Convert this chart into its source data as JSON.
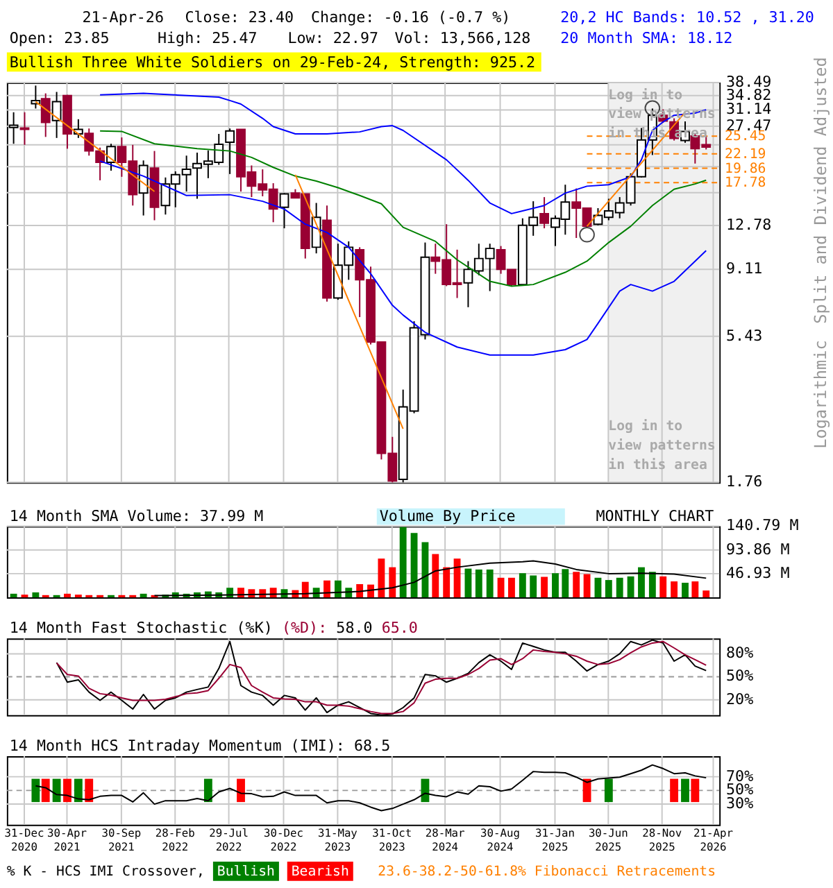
{
  "chart_data": [
    {
      "type": "candlestick",
      "title": "Bullish Three White Soldiers on 29-Feb-24, Strength: 925.2",
      "ylabel": "Split and Dividend Adjusted",
      "x": [
        "2020-12",
        "2021-01",
        "2021-02",
        "2021-03",
        "2021-04",
        "2021-05",
        "2021-06",
        "2021-07",
        "2021-08",
        "2021-09",
        "2021-10",
        "2021-11",
        "2021-12",
        "2022-01",
        "2022-02",
        "2022-03",
        "2022-04",
        "2022-05",
        "2022-06",
        "2022-07",
        "2022-08",
        "2022-09",
        "2022-10",
        "2022-11",
        "2022-12",
        "2023-01",
        "2023-02",
        "2023-03",
        "2023-04",
        "2023-05",
        "2023-06",
        "2023-07",
        "2023-08",
        "2023-09",
        "2023-10",
        "2023-11",
        "2023-12",
        "2024-01",
        "2024-02",
        "2024-03",
        "2024-04",
        "2024-05",
        "2024-06",
        "2024-07",
        "2024-08",
        "2024-09",
        "2024-10",
        "2024-11",
        "2024-12",
        "2025-01",
        "2025-02",
        "2025-03",
        "2025-04",
        "2025-05",
        "2025-06",
        "2025-07",
        "2025-08",
        "2025-09",
        "2025-10",
        "2025-11",
        "2025-12",
        "2026-01",
        "2026-02",
        "2026-03",
        "2026-04"
      ],
      "ohlc": [
        [
          27.2,
          30.6,
          24.0,
          27.7
        ],
        [
          27.1,
          30.6,
          23.8,
          26.8
        ],
        [
          32.7,
          37.6,
          31.5,
          33.5
        ],
        [
          34.0,
          35.4,
          25.3,
          28.3
        ],
        [
          28.7,
          35.8,
          25.1,
          33.2
        ],
        [
          34.8,
          35.0,
          23.1,
          25.9
        ],
        [
          25.9,
          29.0,
          25.1,
          26.8
        ],
        [
          26.0,
          27.0,
          21.9,
          22.7
        ],
        [
          22.7,
          23.3,
          18.1,
          20.8
        ],
        [
          20.8,
          24.0,
          19.5,
          23.5
        ],
        [
          23.5,
          25.2,
          18.6,
          20.8
        ],
        [
          21.0,
          23.8,
          14.9,
          16.2
        ],
        [
          16.4,
          21.1,
          13.8,
          20.3
        ],
        [
          19.9,
          22.7,
          13.3,
          14.7
        ],
        [
          14.9,
          18.5,
          13.9,
          17.6
        ],
        [
          17.6,
          19.4,
          14.7,
          18.9
        ],
        [
          18.9,
          21.9,
          16.6,
          19.7
        ],
        [
          19.9,
          22.4,
          15.7,
          20.6
        ],
        [
          20.5,
          22.8,
          18.4,
          21.0
        ],
        [
          20.8,
          25.9,
          20.4,
          23.9
        ],
        [
          24.3,
          27.0,
          19.0,
          26.5
        ],
        [
          26.8,
          26.8,
          16.6,
          18.6
        ],
        [
          19.3,
          20.3,
          15.9,
          17.3
        ],
        [
          17.6,
          19.7,
          16.0,
          16.8
        ],
        [
          16.9,
          17.7,
          13.1,
          14.5
        ],
        [
          14.7,
          16.4,
          12.5,
          16.3
        ],
        [
          16.4,
          16.9,
          15.8,
          15.8
        ],
        [
          16.3,
          16.3,
          9.9,
          10.7
        ],
        [
          10.8,
          15.2,
          10.3,
          13.6
        ],
        [
          13.3,
          14.9,
          7.1,
          7.3
        ],
        [
          7.3,
          11.1,
          7.2,
          9.4
        ],
        [
          9.4,
          11.3,
          8.4,
          10.8
        ],
        [
          10.6,
          10.8,
          6.3,
          8.4
        ],
        [
          8.4,
          9.3,
          5.1,
          5.2
        ],
        [
          5.2,
          5.2,
          2.1,
          2.2
        ],
        [
          2.2,
          2.5,
          1.76,
          1.78
        ],
        [
          1.8,
          3.6,
          1.76,
          3.15
        ],
        [
          3.05,
          6.1,
          3.0,
          5.8
        ],
        [
          5.5,
          11.2,
          5.3,
          10.0
        ],
        [
          10.0,
          11.1,
          8.8,
          9.7
        ],
        [
          9.8,
          12.9,
          8.0,
          8.1
        ],
        [
          8.2,
          10.6,
          7.3,
          8.1
        ],
        [
          8.2,
          9.7,
          6.8,
          9.1
        ],
        [
          9.0,
          11.1,
          8.7,
          9.9
        ],
        [
          9.9,
          11.1,
          7.7,
          10.7
        ],
        [
          10.6,
          10.9,
          8.8,
          9.1
        ],
        [
          9.1,
          9.1,
          8.0,
          8.1
        ],
        [
          8.1,
          13.5,
          8.1,
          12.8
        ],
        [
          12.8,
          15.4,
          11.8,
          13.6
        ],
        [
          14.0,
          15.9,
          12.5,
          13.0
        ],
        [
          12.6,
          13.8,
          10.9,
          13.5
        ],
        [
          13.4,
          17.5,
          11.9,
          15.3
        ],
        [
          15.3,
          17.0,
          11.6,
          14.6
        ],
        [
          14.6,
          14.6,
          12.6,
          12.7
        ],
        [
          12.9,
          14.6,
          12.8,
          13.8
        ],
        [
          13.6,
          15.7,
          13.3,
          14.3
        ],
        [
          14.1,
          15.9,
          13.5,
          15.2
        ],
        [
          15.2,
          19.1,
          14.9,
          18.6
        ],
        [
          18.6,
          27.1,
          18.5,
          24.7
        ],
        [
          24.7,
          31.5,
          22.0,
          29.9
        ],
        [
          29.9,
          31.3,
          28.2,
          28.6
        ],
        [
          28.4,
          29.2,
          24.6,
          25.0
        ],
        [
          24.6,
          28.5,
          24.2,
          26.4
        ],
        [
          25.5,
          25.9,
          20.6,
          23.1
        ],
        [
          23.85,
          25.47,
          22.97,
          23.4
        ]
      ],
      "series": [
        {
          "type": "line",
          "color": "#0000ff",
          "x": [
            "2021-08",
            "2021-12",
            "2022-07",
            "2022-08",
            "2022-09",
            "2022-11",
            "2022-12",
            "2023-02",
            "2023-05",
            "2023-08",
            "2023-10",
            "2023-11",
            "2023-12",
            "2024-04",
            "2024-06",
            "2024-08",
            "2024-10",
            "2024-11",
            "2025-01",
            "2025-03",
            "2025-05",
            "2025-07",
            "2025-09",
            "2025-10",
            "2025-11",
            "2025-12",
            "2026-01",
            "2026-03",
            "2026-04"
          ],
          "values": [
            35.0,
            35.4,
            34.4,
            33.5,
            32.6,
            29.2,
            27.4,
            25.9,
            25.9,
            26.3,
            27.4,
            27.6,
            26.6,
            21.2,
            18.1,
            15.2,
            14.0,
            14.3,
            14.9,
            16.4,
            17.3,
            17.5,
            18.6,
            21.2,
            26.6,
            28.4,
            29.9,
            30.4,
            31.2
          ]
        },
        {
          "type": "line",
          "color": "#008000",
          "x": [
            "2021-08",
            "2021-10",
            "2022-01",
            "2022-05",
            "2022-08",
            "2022-10",
            "2022-12",
            "2023-02",
            "2023-04",
            "2023-06",
            "2023-08",
            "2023-10",
            "2023-12",
            "2024-03",
            "2024-05",
            "2024-08",
            "2024-10",
            "2024-12",
            "2025-03",
            "2025-05",
            "2025-07",
            "2025-09",
            "2025-11",
            "2026-01",
            "2026-03",
            "2026-04"
          ],
          "values": [
            26.5,
            26.4,
            24.0,
            23.1,
            22.7,
            21.6,
            20.0,
            18.7,
            18.0,
            17.1,
            16.1,
            15.1,
            12.6,
            11.3,
            9.8,
            8.3,
            8.0,
            8.1,
            8.9,
            9.7,
            11.2,
            12.7,
            14.9,
            16.9,
            17.6,
            18.12
          ]
        },
        {
          "type": "line",
          "color": "#0000ff",
          "x": [
            "2021-08",
            "2021-12",
            "2022-04",
            "2022-08",
            "2022-11",
            "2023-01",
            "2023-03",
            "2023-05",
            "2023-07",
            "2023-09",
            "2023-11",
            "2023-12",
            "2024-02",
            "2024-05",
            "2024-08",
            "2024-12",
            "2025-03",
            "2025-05",
            "2025-06",
            "2025-08",
            "2025-09",
            "2025-11",
            "2026-01",
            "2026-04"
          ],
          "values": [
            21.0,
            18.7,
            16.1,
            16.2,
            15.4,
            14.5,
            12.9,
            12.1,
            10.8,
            8.8,
            6.9,
            6.4,
            5.6,
            5.0,
            4.7,
            4.7,
            4.9,
            5.3,
            6.0,
            7.7,
            8.1,
            7.7,
            8.3,
            10.52
          ]
        },
        {
          "type": "line",
          "color": "#ff8000",
          "x": [
            "2021-02",
            "2022-01"
          ],
          "values": [
            33.2,
            16.6
          ]
        },
        {
          "type": "line",
          "color": "#ff8000",
          "x": [
            "2023-02",
            "2023-12"
          ],
          "values": [
            18.9,
            2.66
          ]
        },
        {
          "type": "line",
          "color": "#ff8000",
          "x": [
            "2025-05",
            "2026-02"
          ],
          "values": [
            12.7,
            30.6
          ]
        },
        {
          "type": "scatter",
          "color": "#000000",
          "marker": "circle",
          "x": [
            "2025-05",
            "2025-11"
          ],
          "values": [
            11.9,
            31.6
          ]
        }
      ],
      "ref_lines": [
        {
          "axis": "y",
          "value": 25.45,
          "label": "25.45",
          "color": "#ff8000",
          "line_style": "dashed"
        },
        {
          "axis": "y",
          "value": 22.19,
          "label": "22.19",
          "color": "#ff8000",
          "line_style": "dashed"
        },
        {
          "axis": "y",
          "value": 19.86,
          "label": "19.86",
          "color": "#ff8000",
          "line_style": "dashed"
        },
        {
          "axis": "y",
          "value": 17.78,
          "label": "17.78",
          "color": "#ff8000",
          "line_style": "dashed"
        }
      ],
      "bands": [
        {
          "axis": "x",
          "from": "2025-06-30",
          "to": "2026-05-08",
          "color": "#f0f0f0"
        }
      ],
      "annotations": [
        "21-Apr-26",
        "Close: 23.40",
        "Change: -0.16 (-0.7 %)",
        "Open: 23.85",
        "High: 25.47",
        "Low: 22.97",
        "Vol: 13,566,128",
        "20,2 HC Bands: 10.52 , 31.20",
        "20 Month SMA: 18.12",
        "Log in to view patterns in this area",
        "Log in to view patterns in this area",
        "Logarithmic"
      ],
      "log": true,
      "ylim": [
        1.76,
        38.49
      ],
      "yticks": [
        1.76,
        5.43,
        9.11,
        12.78,
        {
          "value": 16.45,
          "label": null
        },
        {
          "value": 20.12,
          "label": null
        },
        {
          "value": 23.8,
          "label": null
        },
        27.47,
        31.14,
        34.82,
        38.49
      ],
      "xlim": [
        "2020-11-12",
        "2026-05-08"
      ],
      "xticks": [
        {
          "value": "2020-12-31",
          "label": null
        },
        {
          "value": "2021-04-30",
          "label": null
        },
        {
          "value": "2021-09-30",
          "label": null
        },
        {
          "value": "2022-02-28",
          "label": null
        },
        {
          "value": "2022-07-29",
          "label": null
        },
        {
          "value": "2022-12-30",
          "label": null
        },
        {
          "value": "2023-05-31",
          "label": null
        },
        {
          "value": "2023-10-31",
          "label": null
        },
        {
          "value": "2024-03-28",
          "label": null
        },
        {
          "value": "2024-08-30",
          "label": null
        },
        {
          "value": "2025-01-31",
          "label": null
        },
        {
          "value": "2025-06-30",
          "label": null
        },
        {
          "value": "2025-11-28",
          "label": null
        },
        {
          "value": "2026-04-21",
          "label": null
        }
      ],
      "grid": true,
      "tick_labels": "y"
    },
    {
      "type": "bar",
      "title": "14 Month SMA Volume: 37.99 M",
      "annotations": [
        "Volume By Price",
        "MONTHLY CHART"
      ],
      "series": [
        {
          "type": "bar",
          "x": [
            "2020-12",
            "2021-01",
            "2021-02",
            "2021-03",
            "2021-04",
            "2021-05",
            "2021-06",
            "2021-07",
            "2021-08",
            "2021-09",
            "2021-10",
            "2021-11",
            "2021-12",
            "2022-01",
            "2022-02",
            "2022-03",
            "2022-04",
            "2022-05",
            "2022-06",
            "2022-07",
            "2022-08",
            "2022-09",
            "2022-10",
            "2022-11",
            "2022-12",
            "2023-01",
            "2023-02",
            "2023-03",
            "2023-04",
            "2023-05",
            "2023-06",
            "2023-07",
            "2023-08",
            "2023-09",
            "2023-10",
            "2023-11",
            "2023-12",
            "2024-01",
            "2024-02",
            "2024-03",
            "2024-04",
            "2024-05",
            "2024-06",
            "2024-07",
            "2024-08",
            "2024-09",
            "2024-10",
            "2024-11",
            "2024-12",
            "2025-01",
            "2025-02",
            "2025-03",
            "2025-04",
            "2025-05",
            "2025-06",
            "2025-07",
            "2025-08",
            "2025-09",
            "2025-10",
            "2025-11",
            "2025-12",
            "2026-01",
            "2026-02",
            "2026-03",
            "2026-04"
          ],
          "values": [
            7.2,
            5.4,
            9.9,
            4.5,
            4.5,
            7.2,
            5.4,
            4.5,
            4.5,
            4.5,
            4.5,
            4.5,
            7.2,
            4.5,
            5.4,
            9.9,
            7.2,
            9.9,
            11.7,
            9.9,
            19.0,
            19.0,
            16.2,
            16.2,
            19.0,
            16.2,
            14.4,
            30.7,
            19.0,
            33.4,
            33.4,
            19.0,
            26.2,
            25.3,
            76.7,
            59.6,
            139,
            127.3,
            109.2,
            85.7,
            59.6,
            76.7,
            56.9,
            55.1,
            55.1,
            38.8,
            38.8,
            47.8,
            43.3,
            40.6,
            47.8,
            56.0,
            50.5,
            46.0,
            38.8,
            34.3,
            38.8,
            41.5,
            59.6,
            50.5,
            41.5,
            31.6,
            28.9,
            31.6,
            13.57
          ],
          "colors": [
            "#008000",
            "#ff0000",
            "#008000",
            "#ff0000",
            "#008000",
            "#ff0000",
            "#ff0000",
            "#ff0000",
            "#ff0000",
            "#008000",
            "#ff0000",
            "#ff0000",
            "#008000",
            "#ff0000",
            "#008000",
            "#008000",
            "#008000",
            "#008000",
            "#008000",
            "#008000",
            "#008000",
            "#ff0000",
            "#ff0000",
            "#ff0000",
            "#ff0000",
            "#008000",
            "#ff0000",
            "#ff0000",
            "#008000",
            "#ff0000",
            "#008000",
            "#008000",
            "#ff0000",
            "#ff0000",
            "#ff0000",
            "#ff0000",
            "#008000",
            "#008000",
            "#008000",
            "#ff0000",
            "#ff0000",
            "#ff0000",
            "#008000",
            "#008000",
            "#008000",
            "#ff0000",
            "#ff0000",
            "#008000",
            "#008000",
            "#ff0000",
            "#008000",
            "#008000",
            "#ff0000",
            "#ff0000",
            "#008000",
            "#008000",
            "#008000",
            "#008000",
            "#008000",
            "#008000",
            "#ff0000",
            "#ff0000",
            "#008000",
            "#ff0000",
            "#ff0000"
          ]
        },
        {
          "type": "line",
          "color": "#000000",
          "x": [
            "2022-01",
            "2022-07",
            "2023-03",
            "2023-08",
            "2023-11",
            "2024-01",
            "2024-03",
            "2024-05",
            "2024-08",
            "2024-11",
            "2024-12",
            "2025-02",
            "2025-04",
            "2025-07",
            "2025-10",
            "2026-01",
            "2026-04"
          ],
          "values": [
            3.6,
            4.5,
            7.2,
            11.7,
            19.0,
            29.8,
            52.3,
            59.6,
            67.7,
            70.4,
            72.2,
            65.9,
            55.1,
            46.9,
            47.8,
            46.0,
            37.99
          ]
        }
      ],
      "ylim": [
        0,
        140.79
      ],
      "yticks": [
        {
          "value": 46.93,
          "label": "46.93 M"
        },
        {
          "value": 93.86,
          "label": "93.86 M"
        },
        {
          "value": 140.79,
          "label": "140.79 M"
        }
      ],
      "xlim": [
        "2020-11-12",
        "2026-05-08"
      ],
      "xticks": [
        {
          "value": "2020-12-31",
          "label": null
        },
        {
          "value": "2021-04-30",
          "label": null
        },
        {
          "value": "2021-09-30",
          "label": null
        },
        {
          "value": "2022-02-28",
          "label": null
        },
        {
          "value": "2022-07-29",
          "label": null
        },
        {
          "value": "2022-12-30",
          "label": null
        },
        {
          "value": "2023-05-31",
          "label": null
        },
        {
          "value": "2023-10-31",
          "label": null
        },
        {
          "value": "2024-03-28",
          "label": null
        },
        {
          "value": "2024-08-30",
          "label": null
        },
        {
          "value": "2025-01-31",
          "label": null
        },
        {
          "value": "2025-06-30",
          "label": null
        },
        {
          "value": "2025-11-28",
          "label": null
        },
        {
          "value": "2026-04-21",
          "label": null
        }
      ],
      "grid": true,
      "tick_labels": "y"
    },
    {
      "type": "line",
      "title": "14 Month Fast Stochastic",
      "annotations": [
        "58.0",
        "65.0"
      ],
      "series": [
        {
          "name": "(%K)",
          "color": "#000000",
          "x": [
            "2021-04",
            "2021-05",
            "2021-06",
            "2021-07",
            "2021-08",
            "2021-09",
            "2021-10",
            "2021-11",
            "2021-12",
            "2022-01",
            "2022-02",
            "2022-03",
            "2022-04",
            "2022-05",
            "2022-06",
            "2022-07",
            "2022-08",
            "2022-09",
            "2022-10",
            "2022-11",
            "2022-12",
            "2023-01",
            "2023-02",
            "2023-03",
            "2023-04",
            "2023-05",
            "2023-06",
            "2023-07",
            "2023-08",
            "2023-09",
            "2023-10",
            "2023-11",
            "2023-12",
            "2024-01",
            "2024-02",
            "2024-03",
            "2024-04",
            "2024-05",
            "2024-06",
            "2024-07",
            "2024-08",
            "2024-09",
            "2024-10",
            "2024-11",
            "2024-12",
            "2025-01",
            "2025-02",
            "2025-03",
            "2025-04",
            "2025-05",
            "2025-06",
            "2025-07",
            "2025-08",
            "2025-09",
            "2025-10",
            "2025-11",
            "2025-12",
            "2026-01",
            "2026-02",
            "2026-03",
            "2026-04"
          ],
          "values": [
            68.5,
            43,
            46,
            30,
            19.3,
            30,
            19.3,
            7.9,
            27,
            7.9,
            19.3,
            22.5,
            30,
            33.4,
            36.6,
            60.8,
            96,
            38.5,
            30,
            25.7,
            13,
            25.7,
            22.5,
            6.6,
            22.5,
            3.4,
            13,
            17.4,
            9.8,
            2.1,
            0,
            1.5,
            9.8,
            22.5,
            53,
            51.3,
            43,
            48,
            54.5,
            68.5,
            78.7,
            70.4,
            59.6,
            94,
            89.6,
            85,
            82,
            82,
            70.4,
            57.6,
            66,
            70.4,
            80,
            96,
            91.5,
            97.9,
            94,
            70.4,
            78.7,
            64,
            58.0
          ]
        },
        {
          "name": "(%D):",
          "color": "#990033",
          "x": [
            "2021-04",
            "2021-05",
            "2021-06",
            "2021-07",
            "2021-08",
            "2021-09",
            "2021-10",
            "2021-11",
            "2021-12",
            "2022-01",
            "2022-02",
            "2022-03",
            "2022-04",
            "2022-05",
            "2022-06",
            "2022-07",
            "2022-08",
            "2022-09",
            "2022-10",
            "2022-11",
            "2022-12",
            "2023-01",
            "2023-02",
            "2023-03",
            "2023-04",
            "2023-05",
            "2023-06",
            "2023-07",
            "2023-08",
            "2023-09",
            "2023-10",
            "2023-11",
            "2023-12",
            "2024-01",
            "2024-02",
            "2024-03",
            "2024-04",
            "2024-05",
            "2024-06",
            "2024-07",
            "2024-08",
            "2024-09",
            "2024-10",
            "2024-11",
            "2024-12",
            "2025-01",
            "2025-02",
            "2025-03",
            "2025-04",
            "2025-05",
            "2025-06",
            "2025-07",
            "2025-08",
            "2025-09",
            "2025-10",
            "2025-11",
            "2025-12",
            "2026-01",
            "2026-02",
            "2026-03",
            "2026-04"
          ],
          "values": [
            68,
            53,
            51,
            35,
            28,
            26,
            22.5,
            19.3,
            19.3,
            19.3,
            20.6,
            24,
            28,
            29,
            32,
            48,
            66,
            62,
            38.5,
            30,
            22.5,
            21,
            20.6,
            17.4,
            17.4,
            13,
            13,
            11.7,
            8.5,
            4.7,
            2.1,
            2.1,
            4.7,
            16,
            41.7,
            46.8,
            48,
            48,
            53,
            60.8,
            71.7,
            73.6,
            66,
            73.6,
            85,
            83,
            82,
            80,
            76.8,
            70.4,
            66,
            67.2,
            72.3,
            81.3,
            89,
            94,
            96,
            87.6,
            78.7,
            72.3,
            65.0
          ]
        }
      ],
      "ylim": [
        0,
        100
      ],
      "yticks": [
        {
          "value": 20,
          "label": "20%"
        },
        {
          "value": 50,
          "label": "50%"
        },
        {
          "value": 80,
          "label": "80%"
        }
      ],
      "ref_lines": [
        {
          "axis": "y",
          "value": 50,
          "color": "#999999",
          "line_style": "dashed"
        }
      ],
      "xlim": [
        "2020-11-12",
        "2026-05-08"
      ],
      "xticks": [
        {
          "value": "2020-12-31",
          "label": null
        },
        {
          "value": "2021-04-30",
          "label": null
        },
        {
          "value": "2021-09-30",
          "label": null
        },
        {
          "value": "2022-02-28",
          "label": null
        },
        {
          "value": "2022-07-29",
          "label": null
        },
        {
          "value": "2022-12-30",
          "label": null
        },
        {
          "value": "2023-05-31",
          "label": null
        },
        {
          "value": "2023-10-31",
          "label": null
        },
        {
          "value": "2024-03-28",
          "label": null
        },
        {
          "value": "2024-08-30",
          "label": null
        },
        {
          "value": "2025-01-31",
          "label": null
        },
        {
          "value": "2025-06-30",
          "label": null
        },
        {
          "value": "2025-11-28",
          "label": null
        },
        {
          "value": "2026-04-21",
          "label": null
        }
      ],
      "grid": true,
      "tick_labels": "y"
    },
    {
      "type": "line",
      "title": "14 Month HCS Intraday Momentum (IMI): 68.5",
      "legend": "bottom",
      "legend_title": "% K - HCS IMI Crossover,",
      "annotations": [
        "23.6-38.2-50-61.8% Fibonacci Retracements"
      ],
      "series": [
        {
          "type": "bar",
          "name": "Bullish",
          "color": "#008000",
          "x": [
            "2021-02",
            "2021-04",
            "2021-06",
            "2022-06",
            "2024-02",
            "2025-07",
            "2026-02"
          ],
          "base": [
            33,
            33,
            33,
            33,
            33,
            33,
            33
          ],
          "values": [
            34,
            34,
            34,
            34,
            34,
            34,
            34
          ]
        },
        {
          "type": "bar",
          "name": "Bearish",
          "color": "#ff0000",
          "x": [
            "2021-03",
            "2021-05",
            "2021-07",
            "2022-09",
            "2025-05",
            "2026-01",
            "2026-03"
          ],
          "base": [
            33,
            33,
            33,
            33,
            33,
            33,
            33
          ],
          "values": [
            34,
            34,
            34,
            34,
            34,
            34,
            34
          ]
        },
        {
          "type": "line",
          "color": "#000000",
          "x": [
            "2021-02",
            "2021-03",
            "2021-04",
            "2021-05",
            "2021-06",
            "2021-07",
            "2021-08",
            "2021-09",
            "2021-10",
            "2021-11",
            "2021-12",
            "2022-01",
            "2022-02",
            "2022-03",
            "2022-04",
            "2022-05",
            "2022-06",
            "2022-07",
            "2022-08",
            "2022-09",
            "2022-10",
            "2022-11",
            "2022-12",
            "2023-01",
            "2023-02",
            "2023-03",
            "2023-04",
            "2023-05",
            "2023-06",
            "2023-07",
            "2023-08",
            "2023-09",
            "2023-10",
            "2023-11",
            "2023-12",
            "2024-01",
            "2024-02",
            "2024-03",
            "2024-04",
            "2024-05",
            "2024-06",
            "2024-07",
            "2024-08",
            "2024-09",
            "2024-10",
            "2024-11",
            "2024-12",
            "2025-01",
            "2025-02",
            "2025-03",
            "2025-04",
            "2025-05",
            "2025-06",
            "2025-07",
            "2025-08",
            "2025-09",
            "2025-10",
            "2025-11",
            "2025-12",
            "2026-01",
            "2026-02",
            "2026-03",
            "2026-04"
          ],
          "values": [
            56.7,
            54,
            44,
            42.7,
            37.6,
            36.4,
            41.4,
            42.7,
            42.7,
            33.2,
            46.5,
            30,
            35,
            35,
            35,
            38.3,
            35,
            47.8,
            52.9,
            45.9,
            45.2,
            40.8,
            41.4,
            47.8,
            42.7,
            42.7,
            42.7,
            31.9,
            35,
            35,
            31.9,
            25.6,
            20.5,
            23.7,
            30,
            36.4,
            45.9,
            42.7,
            40.8,
            47.8,
            44.6,
            56.7,
            55.4,
            49,
            52.2,
            64.9,
            77.6,
            76.4,
            76.4,
            75.7,
            69.4,
            61.8,
            66.8,
            68.1,
            69.4,
            74.5,
            79.5,
            87.2,
            82,
            74.5,
            75.7,
            71.3,
            68.5
          ]
        }
      ],
      "ylim": [
        0,
        100
      ],
      "yticks": [
        {
          "value": 30,
          "label": "30%"
        },
        {
          "value": 50,
          "label": "50%"
        },
        {
          "value": 70,
          "label": "70%"
        }
      ],
      "ref_lines": [
        {
          "axis": "y",
          "value": 50,
          "color": "#999999",
          "line_style": "dashed"
        }
      ],
      "xlim": [
        "2020-11-12",
        "2026-05-08"
      ],
      "xticks": [
        {
          "value": "2020-12-31",
          "label": "31-Dec 2020"
        },
        {
          "value": "2021-04-30",
          "label": "30-Apr 2021"
        },
        {
          "value": "2021-09-30",
          "label": "30-Sep 2021"
        },
        {
          "value": "2022-02-28",
          "label": "28-Feb 2022"
        },
        {
          "value": "2022-07-29",
          "label": "29-Jul 2022"
        },
        {
          "value": "2022-12-30",
          "label": "30-Dec 2022"
        },
        {
          "value": "2023-05-31",
          "label": "31-May 2023"
        },
        {
          "value": "2023-10-31",
          "label": "31-Oct 2023"
        },
        {
          "value": "2024-03-28",
          "label": "28-Mar 2024"
        },
        {
          "value": "2024-08-30",
          "label": "30-Aug 2024"
        },
        {
          "value": "2025-01-31",
          "label": "31-Jan 2025"
        },
        {
          "value": "2025-06-30",
          "label": "30-Jun 2025"
        },
        {
          "value": "2025-11-28",
          "label": "28-Nov 2025"
        },
        {
          "value": "2026-04-21",
          "label": "21-Apr 2026"
        }
      ],
      "grid": true
    }
  ]
}
